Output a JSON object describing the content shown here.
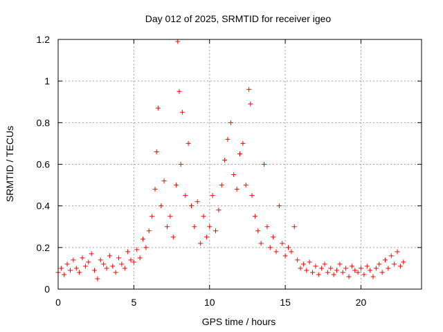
{
  "chart_data": {
    "type": "scatter",
    "title": "Day 012 of 2025, SRMTID for receiver igeo",
    "xlabel": "GPS time / hours",
    "ylabel": "SRMTID / TECUs",
    "xlim": [
      0,
      24
    ],
    "ylim": [
      0,
      1.2
    ],
    "xticks": [
      0,
      5,
      10,
      15,
      20
    ],
    "xtick_labels": [
      "0",
      "5",
      "10",
      "15",
      "20"
    ],
    "yticks": [
      0,
      0.2,
      0.4,
      0.6,
      0.8,
      1,
      1.2
    ],
    "ytick_labels": [
      "0",
      "0.2",
      "0.4",
      "0.6",
      "0.8",
      "1",
      "1.2"
    ],
    "grid": true,
    "marker": "+",
    "color": "#ff0000",
    "series": [
      {
        "name": "SRMTID",
        "x": [
          0.0,
          0.2,
          0.4,
          0.6,
          0.8,
          1.0,
          1.2,
          1.4,
          1.6,
          1.8,
          2.0,
          2.2,
          2.4,
          2.6,
          2.8,
          3.0,
          3.2,
          3.4,
          3.6,
          3.8,
          4.0,
          4.2,
          4.4,
          4.6,
          4.8,
          5.0,
          5.2,
          5.4,
          5.6,
          5.8,
          6.0,
          6.2,
          6.4,
          6.5,
          6.6,
          6.8,
          7.0,
          7.2,
          7.4,
          7.6,
          7.8,
          7.9,
          8.0,
          8.1,
          8.2,
          8.4,
          8.6,
          8.8,
          9.0,
          9.2,
          9.4,
          9.6,
          9.8,
          10.0,
          10.2,
          10.4,
          10.6,
          10.8,
          11.0,
          11.2,
          11.4,
          11.6,
          11.8,
          12.0,
          12.2,
          12.4,
          12.6,
          12.7,
          12.8,
          13.0,
          13.2,
          13.4,
          13.6,
          13.8,
          14.0,
          14.2,
          14.4,
          14.6,
          14.8,
          15.0,
          15.2,
          15.4,
          15.6,
          15.8,
          16.0,
          16.2,
          16.4,
          16.6,
          16.8,
          17.0,
          17.2,
          17.4,
          17.6,
          17.8,
          18.0,
          18.2,
          18.4,
          18.6,
          18.8,
          19.0,
          19.2,
          19.4,
          19.6,
          19.8,
          20.0,
          20.2,
          20.4,
          20.6,
          20.8,
          21.0,
          21.2,
          21.4,
          21.6,
          21.8,
          22.0,
          22.2,
          22.4,
          22.6,
          22.8
        ],
        "y": [
          0.08,
          0.1,
          0.07,
          0.12,
          0.09,
          0.14,
          0.1,
          0.08,
          0.15,
          0.11,
          0.13,
          0.17,
          0.09,
          0.05,
          0.14,
          0.12,
          0.1,
          0.16,
          0.11,
          0.08,
          0.15,
          0.12,
          0.1,
          0.18,
          0.14,
          0.13,
          0.19,
          0.15,
          0.24,
          0.2,
          0.28,
          0.35,
          0.48,
          0.66,
          0.87,
          0.4,
          0.52,
          0.3,
          0.35,
          0.25,
          0.5,
          1.19,
          0.95,
          0.6,
          0.85,
          0.45,
          0.7,
          0.4,
          0.3,
          0.42,
          0.22,
          0.35,
          0.25,
          0.3,
          0.45,
          0.28,
          0.38,
          0.5,
          0.62,
          0.72,
          0.8,
          0.55,
          0.48,
          0.65,
          0.7,
          0.5,
          0.96,
          0.89,
          0.45,
          0.35,
          0.28,
          0.22,
          0.6,
          0.3,
          0.2,
          0.25,
          0.18,
          0.4,
          0.22,
          0.16,
          0.2,
          0.18,
          0.3,
          0.14,
          0.1,
          0.12,
          0.09,
          0.13,
          0.08,
          0.11,
          0.07,
          0.1,
          0.12,
          0.08,
          0.1,
          0.07,
          0.09,
          0.12,
          0.08,
          0.1,
          0.06,
          0.11,
          0.09,
          0.08,
          0.1,
          0.07,
          0.11,
          0.09,
          0.06,
          0.1,
          0.12,
          0.08,
          0.14,
          0.1,
          0.16,
          0.12,
          0.18,
          0.11,
          0.13
        ]
      }
    ]
  }
}
